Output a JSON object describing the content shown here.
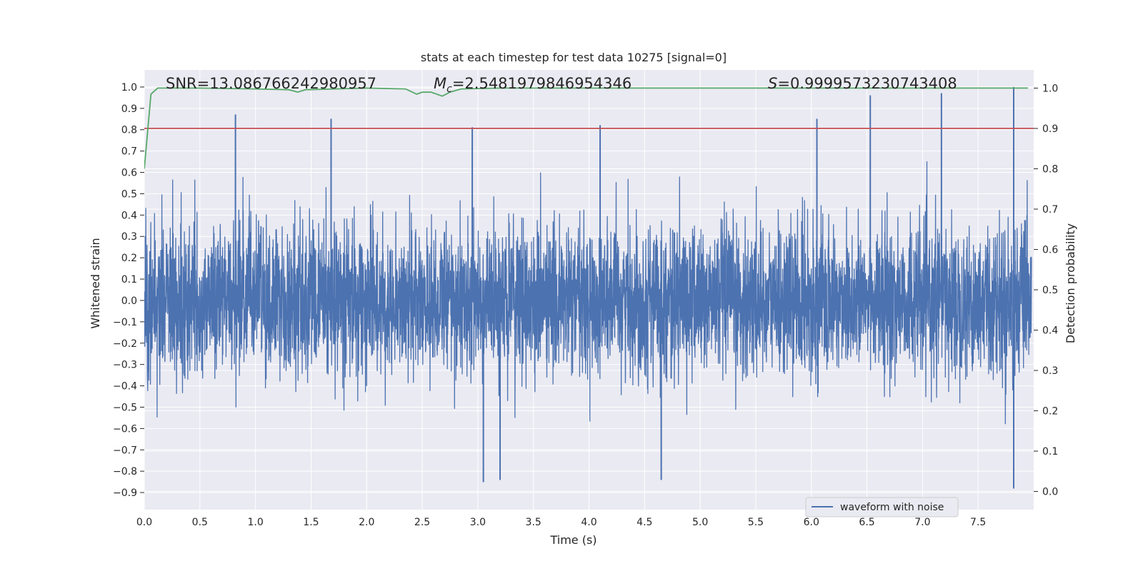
{
  "chart_data": {
    "type": "line",
    "title": "stats at each timestep for test data 10275 [signal=0]",
    "xlabel": "Time (s)",
    "ylabel_left": "Whitened strain",
    "ylabel_right": "Detection probability",
    "xlim": [
      0.0,
      8.0
    ],
    "ylim_left": [
      -0.98,
      1.08
    ],
    "ylim_right": [
      -0.045,
      1.045
    ],
    "grid": true,
    "x_ticks": [
      "0.0",
      "0.5",
      "1.0",
      "1.5",
      "2.0",
      "2.5",
      "3.0",
      "3.5",
      "4.0",
      "4.5",
      "5.0",
      "5.5",
      "6.0",
      "6.5",
      "7.0",
      "7.5"
    ],
    "x_tick_values": [
      0.0,
      0.5,
      1.0,
      1.5,
      2.0,
      2.5,
      3.0,
      3.5,
      4.0,
      4.5,
      5.0,
      5.5,
      6.0,
      6.5,
      7.0,
      7.5
    ],
    "y_ticks_left": [
      "1.0",
      "0.9",
      "0.8",
      "0.7",
      "0.6",
      "0.5",
      "0.4",
      "0.3",
      "0.2",
      "0.1",
      "0.0",
      "−0.1",
      "−0.2",
      "−0.3",
      "−0.4",
      "−0.5",
      "−0.6",
      "−0.7",
      "−0.8",
      "−0.9"
    ],
    "y_tick_values_left": [
      1.0,
      0.9,
      0.8,
      0.7,
      0.6,
      0.5,
      0.4,
      0.3,
      0.2,
      0.1,
      0.0,
      -0.1,
      -0.2,
      -0.3,
      -0.4,
      -0.5,
      -0.6,
      -0.7,
      -0.8,
      -0.9
    ],
    "y_ticks_right": [
      "1.0",
      "0.9",
      "0.8",
      "0.7",
      "0.6",
      "0.5",
      "0.4",
      "0.3",
      "0.2",
      "0.1",
      "0.0"
    ],
    "y_tick_values_right": [
      1.0,
      0.9,
      0.8,
      0.7,
      0.6,
      0.5,
      0.4,
      0.3,
      0.2,
      0.1,
      0.0
    ],
    "annotations": {
      "snr": "SNR=13.086766242980957",
      "mc_symbol": "M",
      "mc_sub": "c",
      "mc_value": "=2.5481979846954346",
      "s_symbol": "S",
      "s_value": "=0.9999573230743408"
    },
    "series": [
      {
        "name": "waveform with noise",
        "axis": "left",
        "color": "#4c72b0",
        "description": "dense whitened strain noise trace, mostly within +/-0.3, bursts up to about +/-0.85",
        "peak_spikes": [
          {
            "t": 0.82,
            "v": 0.87
          },
          {
            "t": 1.68,
            "v": 0.85
          },
          {
            "t": 2.95,
            "v": 0.81
          },
          {
            "t": 4.1,
            "v": 0.82
          },
          {
            "t": 6.05,
            "v": 0.85
          },
          {
            "t": 6.53,
            "v": 0.96
          },
          {
            "t": 7.17,
            "v": 0.97
          },
          {
            "t": 7.82,
            "v": 1.0
          },
          {
            "t": 3.05,
            "v": -0.85
          },
          {
            "t": 3.2,
            "v": -0.84
          },
          {
            "t": 4.65,
            "v": -0.84
          },
          {
            "t": 7.82,
            "v": -0.88
          }
        ]
      },
      {
        "name": "detection probability",
        "axis": "right",
        "color": "#55a868",
        "x": [
          0.0,
          0.06,
          0.12,
          0.5,
          1.0,
          1.3,
          1.38,
          1.45,
          2.0,
          2.35,
          2.45,
          2.5,
          2.58,
          2.68,
          2.75,
          2.85,
          3.2,
          4.0,
          5.0,
          6.0,
          7.0,
          7.95
        ],
        "values": [
          0.8,
          0.985,
          1.0,
          1.0,
          0.998,
          0.996,
          0.99,
          0.996,
          1.0,
          0.998,
          0.985,
          0.99,
          0.99,
          0.98,
          0.99,
          0.998,
          1.0,
          1.0,
          1.0,
          1.0,
          1.0,
          1.0
        ]
      },
      {
        "name": "threshold",
        "axis": "right",
        "color": "#c44e52",
        "x": [
          0.0,
          8.0
        ],
        "values": [
          0.9,
          0.9
        ]
      }
    ],
    "legend": {
      "location": "lower-right",
      "entries": [
        {
          "label": "waveform with noise",
          "color": "#4c72b0"
        }
      ]
    }
  }
}
